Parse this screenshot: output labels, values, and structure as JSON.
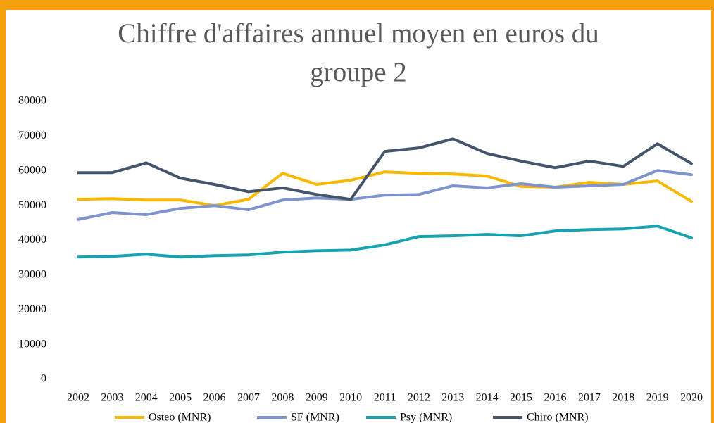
{
  "chart_data": {
    "type": "line",
    "title": "Chiffre d'affaires annuel moyen en euros du groupe 2",
    "categories": [
      "2002",
      "2003",
      "2004",
      "2005",
      "2006",
      "2007",
      "2008",
      "2009",
      "2010",
      "2011",
      "2012",
      "2013",
      "2014",
      "2015",
      "2016",
      "2017",
      "2018",
      "2019",
      "2020"
    ],
    "series": [
      {
        "name": "Osteo (MNR)",
        "color": "#f9b800",
        "values": [
          51800,
          52000,
          51600,
          51600,
          50000,
          51800,
          59300,
          56100,
          57300,
          59700,
          59300,
          59100,
          58500,
          55500,
          55300,
          56700,
          56100,
          57100,
          51200
        ]
      },
      {
        "name": "SF (MNR)",
        "color": "#7f93cf",
        "values": [
          46000,
          48000,
          47400,
          49200,
          50000,
          48800,
          51600,
          52200,
          51800,
          53000,
          53200,
          55700,
          55100,
          56300,
          55300,
          55700,
          56100,
          60100,
          58900
        ]
      },
      {
        "name": "Psy (MNR)",
        "color": "#17a2b0",
        "values": [
          35200,
          35400,
          36000,
          35200,
          35600,
          35800,
          36600,
          37000,
          37200,
          38700,
          41100,
          41300,
          41700,
          41300,
          42700,
          43100,
          43300,
          44100,
          40700
        ]
      },
      {
        "name": "Chiro (MNR)",
        "color": "#44546a",
        "values": [
          59500,
          59500,
          62300,
          57900,
          56100,
          54000,
          55100,
          53200,
          51800,
          65600,
          66600,
          69200,
          65000,
          62800,
          60900,
          62800,
          61300,
          67800,
          62100
        ]
      }
    ],
    "ylim": [
      0,
      80000
    ],
    "yticks": [
      0,
      10000,
      20000,
      30000,
      40000,
      50000,
      60000,
      70000,
      80000
    ],
    "grid": false,
    "legend": "bottom"
  }
}
